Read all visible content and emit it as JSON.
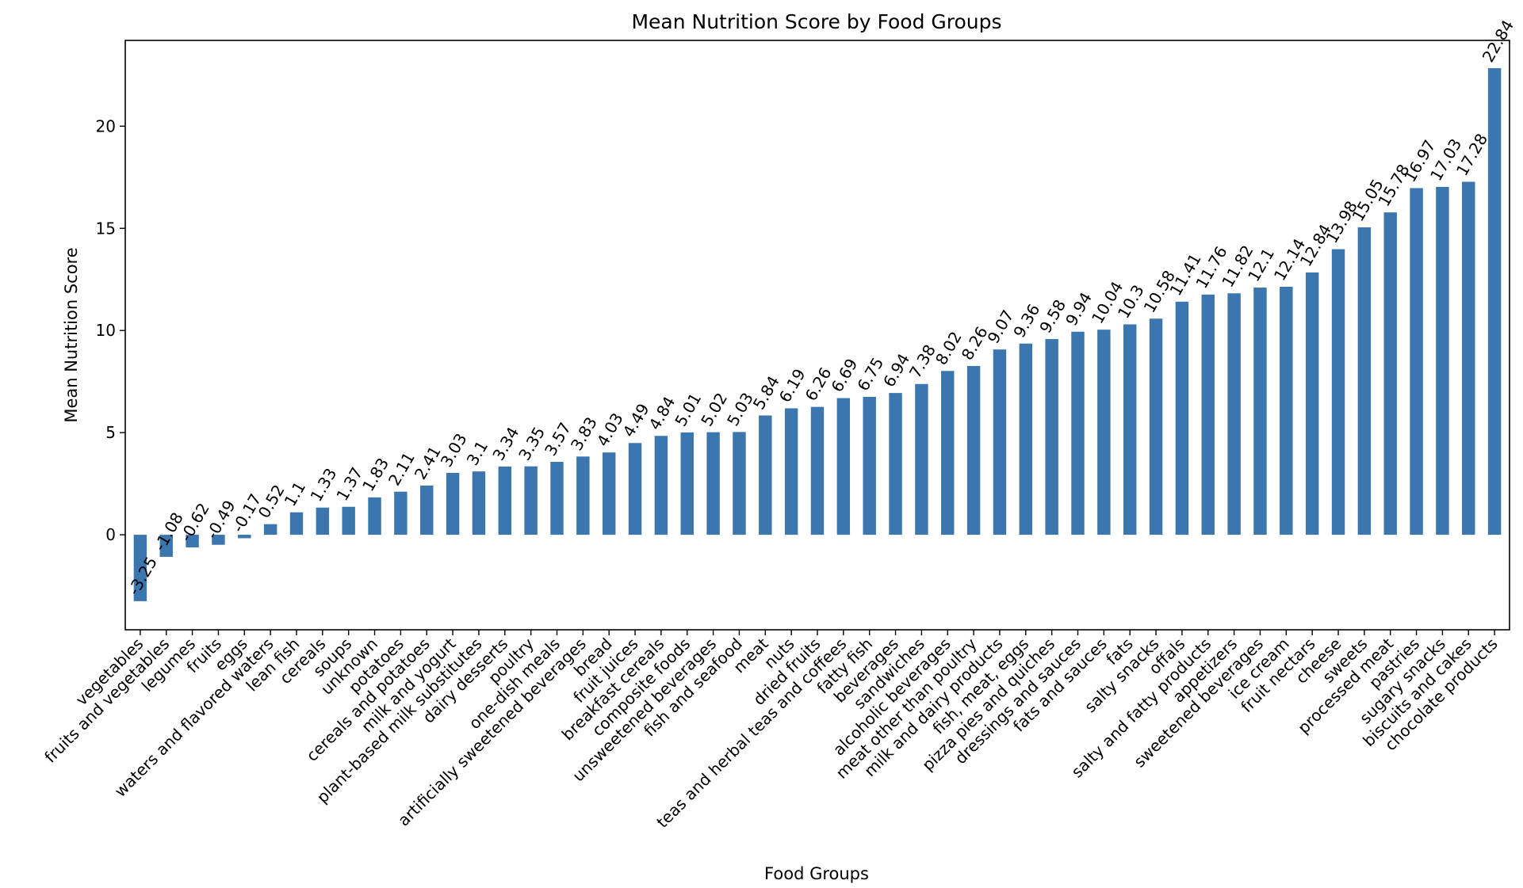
{
  "chart_data": {
    "type": "bar",
    "title": "Mean Nutrition Score by Food Groups",
    "xlabel": "Food Groups",
    "ylabel": "Mean Nutrition Score",
    "ylim": [
      -4.65,
      24.2
    ],
    "yticks": [
      0,
      5,
      10,
      15,
      20
    ],
    "grid": false,
    "legend": "none",
    "bar_color": "#3b76af",
    "categories": [
      "vegetables",
      "fruits and vegetables",
      "legumes",
      "fruits",
      "eggs",
      "waters and flavored waters",
      "lean fish",
      "cereals",
      "soups",
      "unknown",
      "potatoes",
      "cereals and potatoes",
      "milk and yogurt",
      "plant-based milk substitutes",
      "dairy desserts",
      "poultry",
      "one-dish meals",
      "artificially sweetened beverages",
      "bread",
      "fruit juices",
      "breakfast cereals",
      "composite foods",
      "unsweetened beverages",
      "fish and seafood",
      "meat",
      "nuts",
      "dried fruits",
      "teas and herbal teas and coffees",
      "fatty fish",
      "beverages",
      "sandwiches",
      "alcoholic beverages",
      "meat other than poultry",
      "milk and dairy products",
      "fish, meat, eggs",
      "pizza pies and quiches",
      "dressings and sauces",
      "fats and sauces",
      "fats",
      "salty snacks",
      "offals",
      "salty and fatty products",
      "appetizers",
      "sweetened beverages",
      "ice cream",
      "fruit nectars",
      "cheese",
      "sweets",
      "processed meat",
      "pastries",
      "sugary snacks",
      "biscuits and cakes",
      "chocolate products"
    ],
    "values": [
      -3.25,
      -1.08,
      -0.62,
      -0.49,
      -0.17,
      0.52,
      1.1,
      1.33,
      1.37,
      1.83,
      2.11,
      2.41,
      3.03,
      3.1,
      3.34,
      3.35,
      3.57,
      3.83,
      4.03,
      4.49,
      4.84,
      5.01,
      5.02,
      5.03,
      5.84,
      6.19,
      6.26,
      6.69,
      6.75,
      6.94,
      7.38,
      8.02,
      8.26,
      9.07,
      9.36,
      9.58,
      9.94,
      10.04,
      10.3,
      10.58,
      11.41,
      11.76,
      11.82,
      12.1,
      12.14,
      12.84,
      13.98,
      15.05,
      15.78,
      16.97,
      17.03,
      17.28,
      22.84
    ],
    "value_labels": [
      "-3.25",
      "-1.08",
      "-0.62",
      "-0.49",
      "-0.17",
      "0.52",
      "1.1",
      "1.33",
      "1.37",
      "1.83",
      "2.11",
      "2.41",
      "3.03",
      "3.1",
      "3.34",
      "3.35",
      "3.57",
      "3.83",
      "4.03",
      "4.49",
      "4.84",
      "5.01",
      "5.02",
      "5.03",
      "5.84",
      "6.19",
      "6.26",
      "6.69",
      "6.75",
      "6.94",
      "7.38",
      "8.02",
      "8.26",
      "9.07",
      "9.36",
      "9.58",
      "9.94",
      "10.04",
      "10.3",
      "10.58",
      "11.41",
      "11.76",
      "11.82",
      "12.1",
      "12.14",
      "12.84",
      "13.98",
      "15.05",
      "15.78",
      "16.97",
      "17.03",
      "17.28",
      "22.84"
    ]
  }
}
